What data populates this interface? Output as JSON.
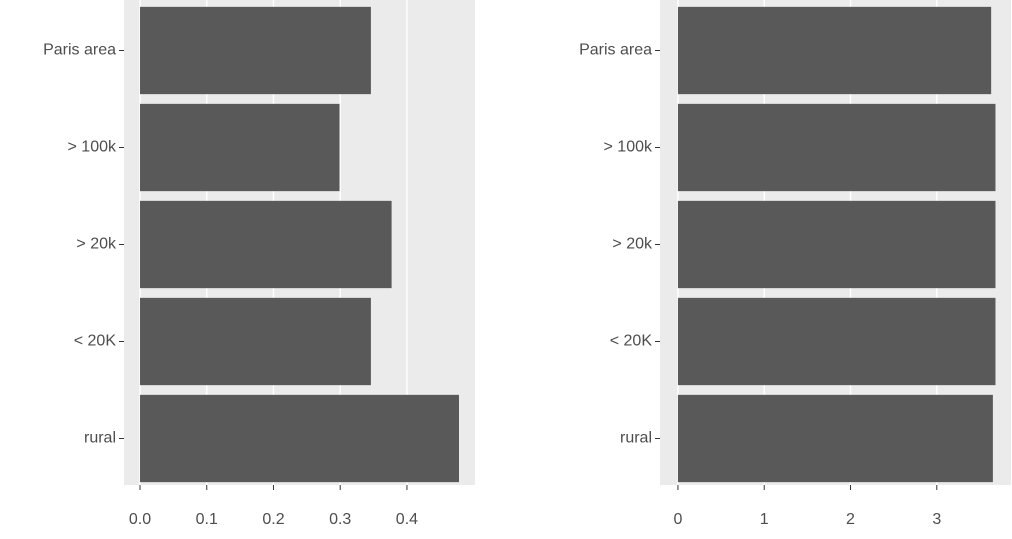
{
  "chart_data": [
    {
      "type": "bar",
      "orientation": "horizontal",
      "categories": [
        "Paris area",
        "> 100k",
        "> 20k",
        "< 20K",
        "rural"
      ],
      "values": [
        0.346,
        0.299,
        0.377,
        0.346,
        0.478
      ],
      "color": "#595959",
      "xlim": [
        -0.024,
        0.502
      ],
      "xticks": [
        {
          "value": 0,
          "label": "0.0"
        },
        0.1,
        0.2,
        0.3,
        0.4
      ],
      "grid": true
    },
    {
      "type": "bar",
      "orientation": "horizontal",
      "categories": [
        "Paris area",
        "> 100k",
        "> 20k",
        "< 20K",
        "rural"
      ],
      "values": [
        3.63,
        3.68,
        3.68,
        3.68,
        3.65
      ],
      "color": "#595959",
      "xlim": [
        -0.208,
        3.86
      ],
      "xticks": [
        0,
        1,
        2,
        3
      ],
      "grid": true
    }
  ]
}
